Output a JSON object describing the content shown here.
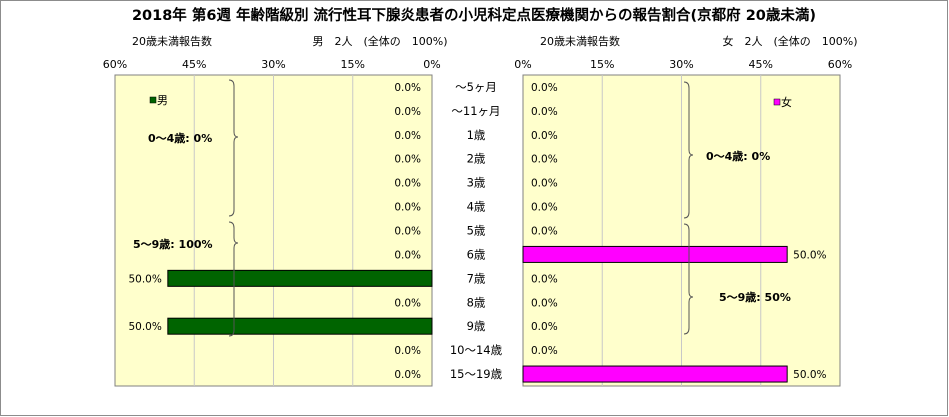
{
  "chart_data": {
    "type": "bar",
    "orientation": "horizontal-pyramid",
    "title": "2018年 第6週 年齢階級別 流行性耳下腺炎患者の小児科定点医療機関からの報告割合(京都府 20歳未満)",
    "categories": [
      "～5ヶ月",
      "～11ヶ月",
      "1歳",
      "2歳",
      "3歳",
      "4歳",
      "5歳",
      "6歳",
      "7歳",
      "8歳",
      "9歳",
      "10～14歳",
      "15～19歳"
    ],
    "xlim": [
      0,
      60
    ],
    "ticks": [
      "60%",
      "45%",
      "30%",
      "15%",
      "0%"
    ],
    "ticks_right": [
      "0%",
      "15%",
      "30%",
      "45%",
      "60%"
    ],
    "grid": true,
    "series": [
      {
        "name": "男",
        "side": "left",
        "color": "#006400",
        "header_left": "20歳未満報告数",
        "header_main": "男　2人　(全体の　100%)",
        "values": [
          0,
          0,
          0,
          0,
          0,
          0,
          0,
          0,
          50,
          0,
          50,
          0,
          0
        ],
        "labels": [
          "0.0%",
          "0.0%",
          "0.0%",
          "0.0%",
          "0.0%",
          "0.0%",
          "0.0%",
          "0.0%",
          "50.0%",
          "0.0%",
          "50.0%",
          "0.0%",
          "0.0%"
        ],
        "annotations": [
          "0～4歳: 0%",
          "5～9歳: 100%"
        ]
      },
      {
        "name": "女",
        "side": "right",
        "color": "#ff00ff",
        "header_left": "20歳未満報告数",
        "header_main": "女　2人　(全体の　100%)",
        "values": [
          0,
          0,
          0,
          0,
          0,
          0,
          0,
          50,
          0,
          0,
          0,
          0,
          50
        ],
        "labels": [
          "0.0%",
          "0.0%",
          "0.0%",
          "0.0%",
          "0.0%",
          "0.0%",
          "0.0%",
          "50.0%",
          "0.0%",
          "0.0%",
          "0.0%",
          "0.0%",
          "50.0%"
        ],
        "annotations": [
          "0～4歳: 0%",
          "5～9歳: 50%"
        ]
      }
    ]
  }
}
